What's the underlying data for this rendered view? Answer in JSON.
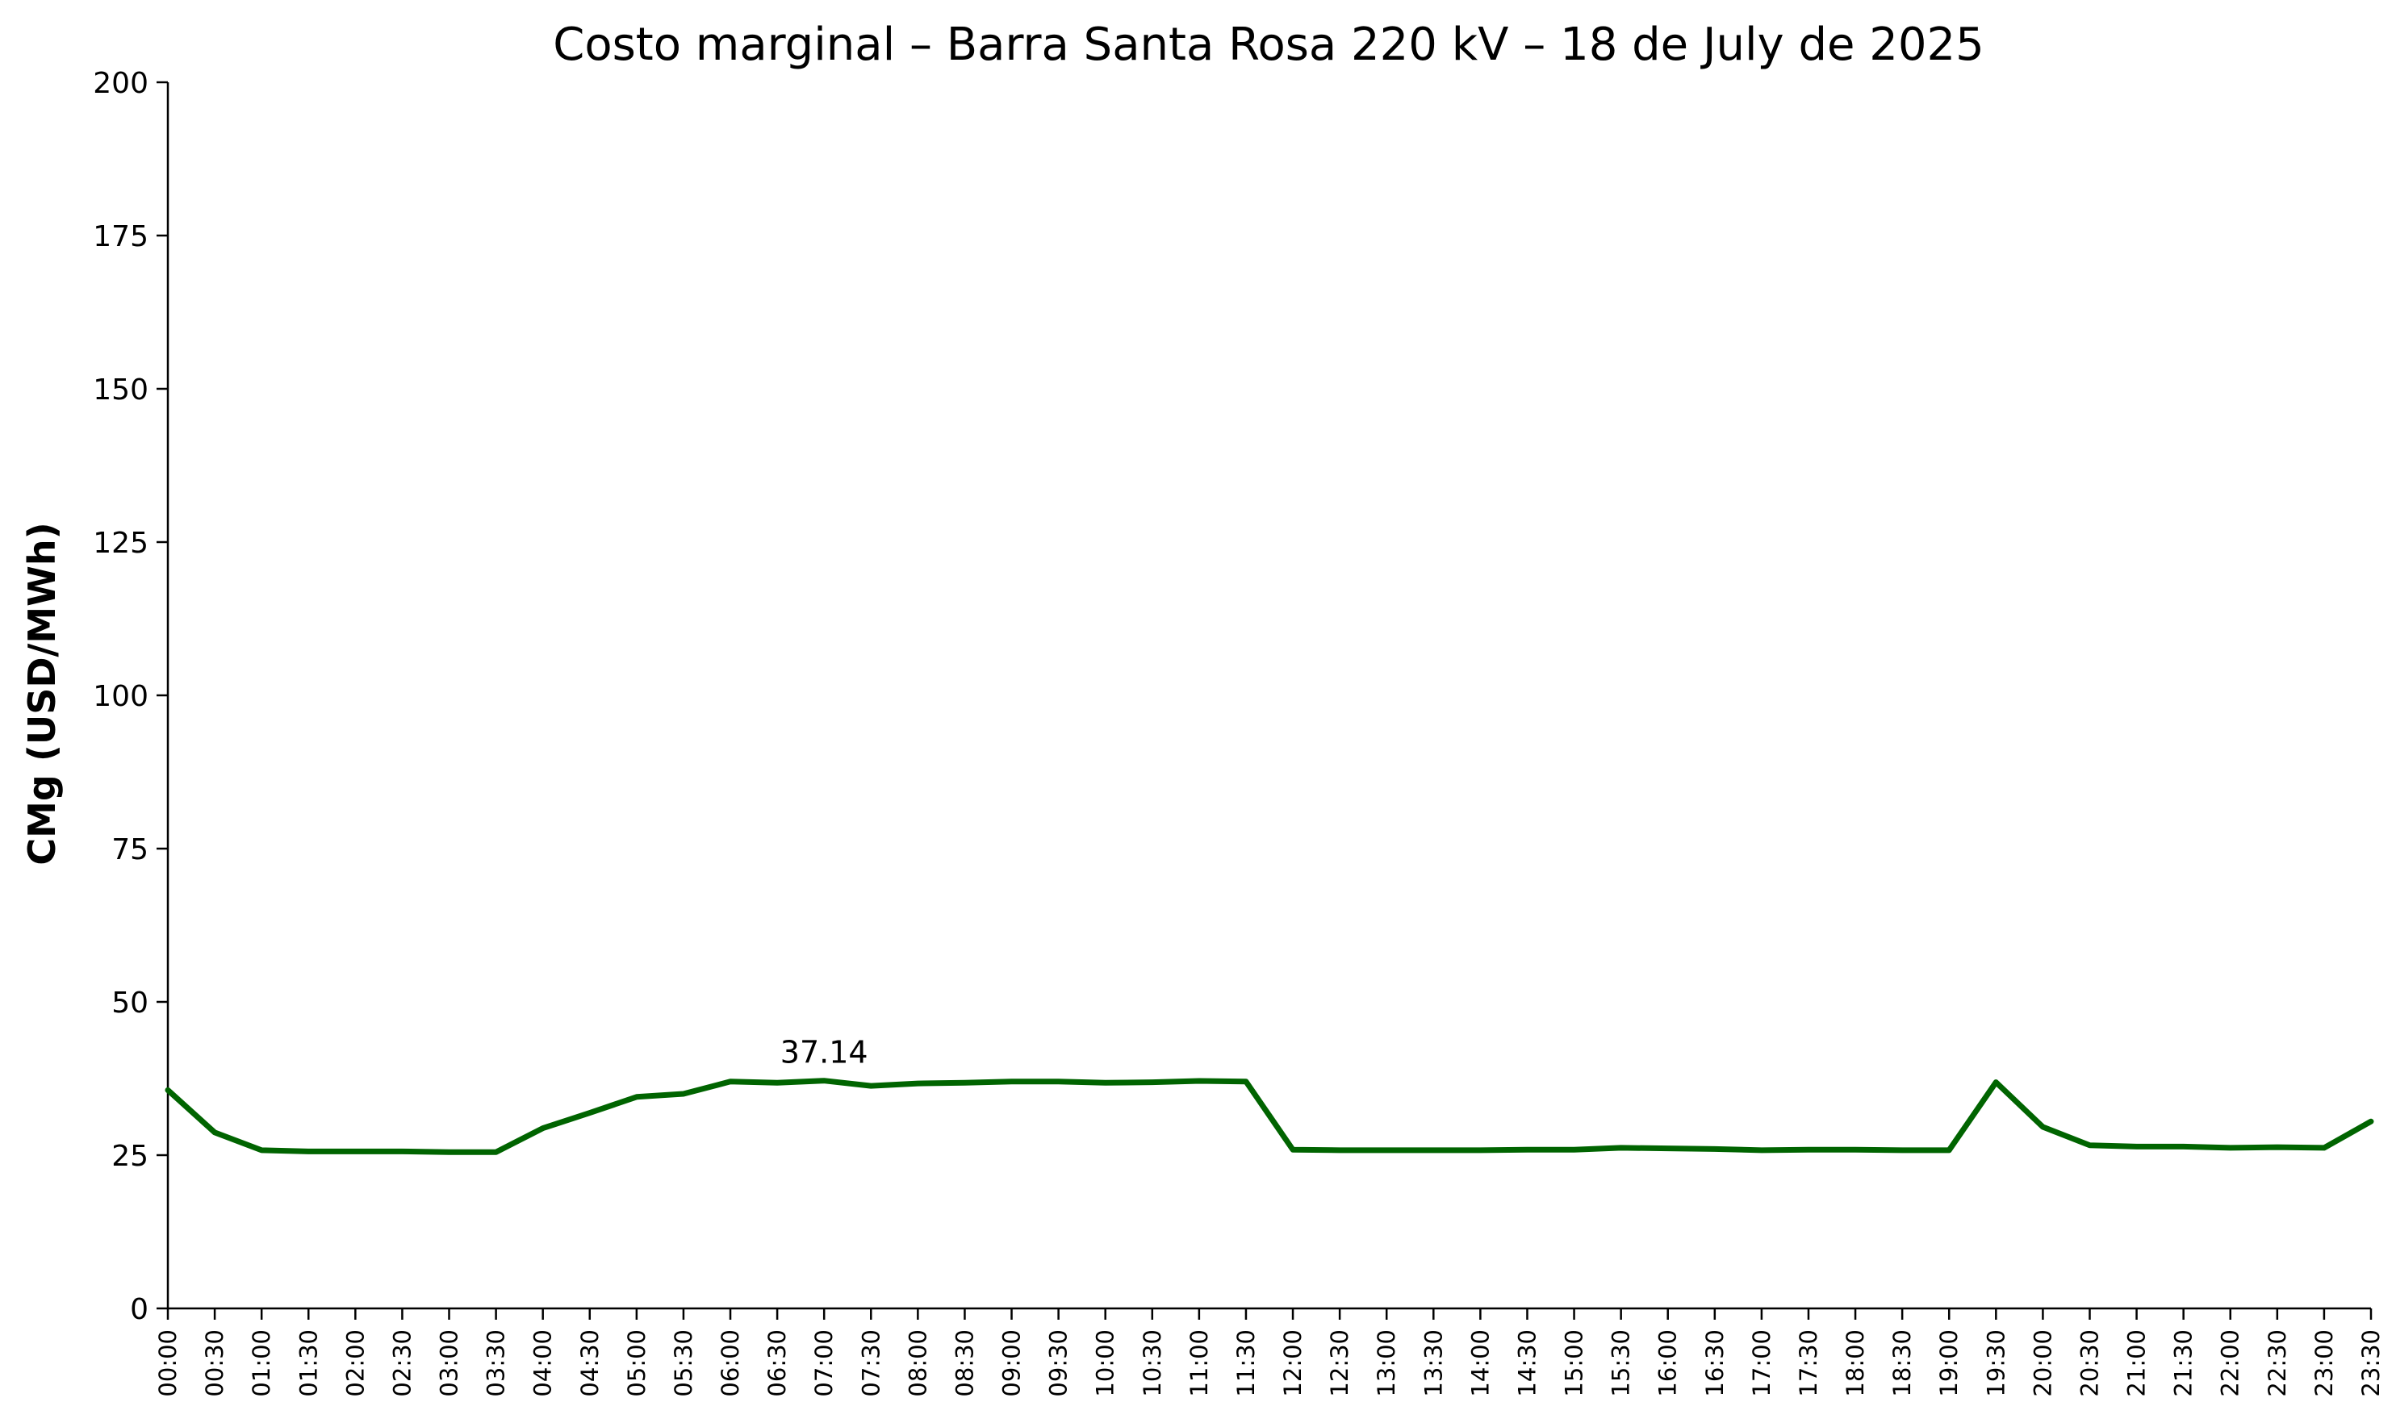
{
  "chart_data": {
    "type": "line",
    "title": "Costo marginal – Barra Santa Rosa 220 kV – 18 de July de 2025",
    "xlabel": "",
    "ylabel": "CMg (USD/MWh)",
    "ylim": [
      0,
      200
    ],
    "yticks": [
      0,
      25,
      50,
      75,
      100,
      125,
      150,
      175,
      200
    ],
    "grid": false,
    "line_color": "#006400",
    "categories": [
      "00:00",
      "00:30",
      "01:00",
      "01:30",
      "02:00",
      "02:30",
      "03:00",
      "03:30",
      "04:00",
      "04:30",
      "05:00",
      "05:30",
      "06:00",
      "06:30",
      "07:00",
      "07:30",
      "08:00",
      "08:30",
      "09:00",
      "09:30",
      "10:00",
      "10:30",
      "11:00",
      "11:30",
      "12:00",
      "12:30",
      "13:00",
      "13:30",
      "14:00",
      "14:30",
      "15:00",
      "15:30",
      "16:00",
      "16:30",
      "17:00",
      "17:30",
      "18:00",
      "18:30",
      "19:00",
      "19:30",
      "20:00",
      "20:30",
      "21:00",
      "21:30",
      "22:00",
      "22:30",
      "23:00",
      "23:30"
    ],
    "values": [
      35.6,
      28.7,
      25.8,
      25.6,
      25.6,
      25.6,
      25.5,
      25.5,
      29.4,
      31.9,
      34.5,
      35.0,
      37.0,
      36.8,
      37.14,
      36.3,
      36.7,
      36.8,
      37.0,
      37.0,
      36.8,
      36.9,
      37.1,
      37.0,
      25.9,
      25.8,
      25.8,
      25.8,
      25.8,
      25.9,
      25.9,
      26.2,
      26.1,
      26.0,
      25.8,
      25.9,
      25.9,
      25.8,
      25.8,
      36.9,
      29.6,
      26.6,
      26.4,
      26.4,
      26.2,
      26.3,
      26.2,
      30.5
    ],
    "annotations": [
      {
        "text": "37.14",
        "category": "07:00",
        "value": 37.14
      }
    ]
  }
}
